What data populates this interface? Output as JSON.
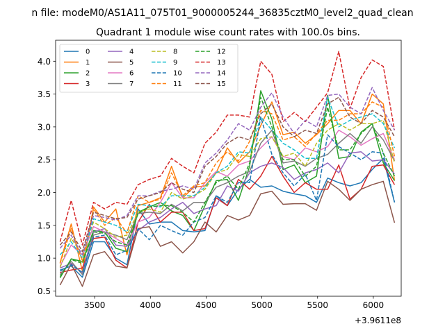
{
  "chart_data": {
    "type": "line",
    "suptitle": "n file: modeM0/AS1A11_075T01_9000005244_36835cztM0_level2_quad_clean",
    "title": "Quadrant 1 module wise count rates with 100.0s bins.",
    "xlabel": "",
    "ylabel": "",
    "x_offset_label": "+3.9611e8",
    "x_offset": 396110000,
    "xlim": [
      3150,
      6250
    ],
    "ylim": [
      0.42,
      4.32
    ],
    "xticks": [
      3500,
      4000,
      4500,
      5000,
      5500,
      6000
    ],
    "yticks": [
      0.5,
      1.0,
      1.5,
      2.0,
      2.5,
      3.0,
      3.5,
      4.0
    ],
    "grid": false,
    "legend_position": "upper left",
    "legend_ncol": 4,
    "x": [
      3190,
      3290,
      3390,
      3490,
      3590,
      3690,
      3790,
      3890,
      3990,
      4090,
      4190,
      4290,
      4390,
      4490,
      4590,
      4690,
      4790,
      4890,
      4990,
      5090,
      5190,
      5290,
      5390,
      5490,
      5590,
      5690,
      5790,
      5890,
      5990,
      6090,
      6190
    ],
    "series": [
      {
        "name": "0",
        "color": "#1f77b4",
        "dash": "solid",
        "values": [
          0.82,
          0.88,
          0.71,
          1.25,
          1.25,
          1.0,
          0.9,
          1.75,
          1.52,
          1.55,
          1.55,
          1.42,
          1.4,
          1.42,
          1.95,
          1.8,
          2.05,
          2.2,
          2.08,
          2.1,
          2.02,
          1.98,
          1.95,
          1.85,
          2.22,
          2.15,
          2.1,
          2.15,
          2.35,
          2.52,
          1.85
        ]
      },
      {
        "name": "1",
        "color": "#ff7f0e",
        "dash": "solid",
        "values": [
          0.93,
          1.52,
          0.8,
          1.78,
          1.55,
          1.75,
          1.05,
          1.8,
          1.85,
          1.92,
          2.4,
          1.92,
          2.08,
          2.1,
          2.3,
          2.68,
          2.45,
          2.62,
          3.02,
          3.38,
          2.88,
          2.92,
          2.75,
          2.88,
          3.05,
          3.25,
          3.25,
          3.05,
          3.5,
          3.35,
          2.18
        ]
      },
      {
        "name": "2",
        "color": "#2ca02c",
        "dash": "solid",
        "values": [
          0.7,
          0.99,
          0.95,
          1.42,
          1.4,
          1.15,
          1.1,
          1.7,
          1.78,
          1.85,
          1.72,
          1.65,
          1.42,
          1.8,
          2.18,
          2.2,
          1.88,
          2.4,
          3.55,
          3.12,
          2.35,
          2.42,
          2.15,
          2.25,
          3.48,
          2.52,
          2.55,
          2.92,
          3.05,
          2.45,
          2.18
        ]
      },
      {
        "name": "3",
        "color": "#d62728",
        "dash": "solid",
        "values": [
          0.78,
          0.82,
          0.85,
          1.3,
          1.32,
          0.97,
          0.85,
          1.55,
          1.82,
          1.55,
          1.7,
          1.7,
          1.42,
          1.45,
          1.92,
          1.8,
          2.2,
          2.05,
          2.25,
          2.55,
          2.25,
          2.0,
          2.15,
          2.05,
          2.05,
          2.42,
          1.9,
          2.05,
          2.4,
          2.42,
          2.12
        ]
      },
      {
        "name": "4",
        "color": "#9467bd",
        "dash": "solid",
        "values": [
          0.85,
          0.92,
          0.78,
          1.4,
          1.45,
          1.2,
          1.18,
          1.42,
          1.55,
          1.62,
          1.75,
          1.85,
          1.68,
          1.75,
          1.8,
          2.1,
          2.02,
          2.3,
          2.4,
          2.45,
          2.38,
          2.2,
          2.3,
          2.35,
          2.45,
          2.3,
          2.6,
          2.62,
          2.48,
          2.5,
          2.28
        ]
      },
      {
        "name": "5",
        "color": "#8c564b",
        "dash": "solid",
        "values": [
          0.59,
          0.91,
          0.57,
          1.05,
          1.1,
          0.88,
          0.85,
          1.45,
          1.48,
          1.18,
          1.25,
          1.08,
          1.25,
          1.55,
          1.4,
          1.65,
          1.58,
          1.65,
          1.98,
          2.02,
          1.82,
          1.83,
          1.83,
          1.73,
          2.17,
          2.05,
          1.88,
          2.05,
          2.12,
          2.17,
          1.54
        ]
      },
      {
        "name": "6",
        "color": "#e377c2",
        "dash": "solid",
        "values": [
          0.88,
          1.2,
          1.05,
          1.48,
          1.4,
          1.3,
          1.2,
          1.55,
          1.62,
          1.85,
          2.15,
          1.92,
          1.92,
          2.15,
          2.32,
          2.25,
          2.42,
          2.48,
          2.68,
          2.85,
          2.55,
          2.5,
          2.68,
          2.62,
          2.7,
          2.95,
          2.85,
          2.72,
          2.82,
          2.9,
          2.5
        ]
      },
      {
        "name": "7",
        "color": "#7f7f7f",
        "dash": "solid",
        "values": [
          0.75,
          0.95,
          0.75,
          1.35,
          1.4,
          1.35,
          1.28,
          1.68,
          1.7,
          1.68,
          1.82,
          1.72,
          1.85,
          1.85,
          2.08,
          2.15,
          2.25,
          2.32,
          2.75,
          2.95,
          2.45,
          2.48,
          2.4,
          2.52,
          2.58,
          2.75,
          2.9,
          2.75,
          3.0,
          2.8,
          2.48
        ]
      },
      {
        "name": "8",
        "color": "#bcbd22",
        "dash": "dashed",
        "values": [
          0.86,
          1.3,
          1.05,
          1.55,
          1.45,
          1.32,
          1.35,
          1.7,
          1.75,
          1.7,
          2.0,
          1.9,
          1.95,
          2.05,
          2.3,
          2.35,
          2.58,
          2.55,
          2.82,
          2.85,
          2.55,
          2.6,
          2.4,
          2.75,
          2.95,
          3.05,
          2.95,
          3.05,
          3.05,
          3.1,
          2.45
        ]
      },
      {
        "name": "9",
        "color": "#17becf",
        "dash": "dashed",
        "values": [
          1.05,
          1.25,
          1.0,
          1.6,
          1.55,
          1.5,
          1.4,
          1.82,
          1.8,
          1.78,
          1.95,
          1.95,
          1.95,
          2.08,
          2.3,
          2.4,
          2.62,
          2.6,
          3.15,
          2.95,
          2.75,
          2.65,
          2.52,
          2.52,
          3.45,
          3.0,
          3.1,
          3.15,
          3.2,
          3.05,
          2.68
        ]
      },
      {
        "name": "10",
        "color": "#1f77b4",
        "dash": "dashed",
        "values": [
          0.8,
          0.9,
          0.78,
          1.32,
          1.35,
          1.05,
          1.12,
          1.45,
          1.28,
          1.5,
          1.42,
          1.35,
          1.55,
          1.62,
          1.95,
          1.85,
          2.15,
          2.15,
          3.15,
          2.58,
          2.3,
          2.1,
          2.28,
          1.88,
          2.88,
          2.7,
          2.6,
          2.5,
          2.62,
          2.6,
          1.85
        ]
      },
      {
        "name": "11",
        "color": "#ff7f0e",
        "dash": "dashed",
        "values": [
          0.92,
          1.45,
          0.95,
          1.75,
          1.5,
          1.62,
          1.38,
          1.95,
          1.85,
          1.9,
          2.3,
          1.95,
          2.1,
          2.15,
          2.45,
          2.62,
          2.48,
          2.78,
          3.25,
          3.2,
          2.8,
          2.85,
          2.7,
          2.9,
          3.1,
          3.1,
          3.2,
          3.2,
          3.38,
          3.3,
          2.55
        ]
      },
      {
        "name": "12",
        "color": "#2ca02c",
        "dash": "dashed",
        "values": [
          0.72,
          0.98,
          0.92,
          1.4,
          1.38,
          1.25,
          1.2,
          1.68,
          1.78,
          1.8,
          1.8,
          1.7,
          1.55,
          1.85,
          2.15,
          2.25,
          2.05,
          2.45,
          3.45,
          3.0,
          2.5,
          2.5,
          2.25,
          2.4,
          3.3,
          2.65,
          2.65,
          2.9,
          3.05,
          2.6,
          2.25
        ]
      },
      {
        "name": "13",
        "color": "#d62728",
        "dash": "dashed",
        "values": [
          1.25,
          1.88,
          1.2,
          1.85,
          1.75,
          1.85,
          1.82,
          2.12,
          2.2,
          2.25,
          2.52,
          2.4,
          2.3,
          2.75,
          2.92,
          3.18,
          3.18,
          3.15,
          4.0,
          3.8,
          3.08,
          3.22,
          3.08,
          3.3,
          3.52,
          4.15,
          3.28,
          3.75,
          4.02,
          3.92,
          2.95
        ]
      },
      {
        "name": "14",
        "color": "#9467bd",
        "dash": "dashed",
        "values": [
          1.15,
          1.35,
          1.05,
          1.65,
          1.62,
          1.58,
          1.65,
          1.95,
          1.95,
          2.02,
          2.05,
          2.1,
          2.05,
          2.45,
          2.6,
          2.8,
          3.05,
          2.95,
          3.3,
          3.52,
          3.15,
          2.9,
          3.1,
          3.0,
          3.48,
          3.5,
          3.3,
          3.2,
          3.6,
          3.25,
          2.95
        ]
      },
      {
        "name": "15",
        "color": "#8c564b",
        "dash": "dashed",
        "values": [
          1.2,
          1.4,
          1.1,
          1.7,
          1.65,
          1.6,
          1.62,
          1.9,
          1.95,
          2.0,
          2.15,
          2.05,
          2.0,
          2.4,
          2.55,
          2.75,
          2.85,
          2.8,
          3.2,
          3.35,
          3.0,
          2.85,
          2.95,
          2.9,
          3.35,
          3.45,
          3.15,
          3.05,
          3.25,
          3.15,
          2.85
        ]
      }
    ]
  }
}
